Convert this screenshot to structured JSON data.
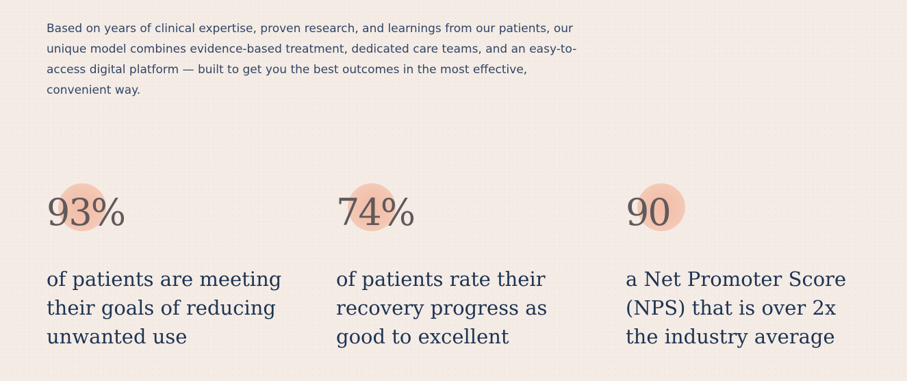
{
  "intro": {
    "text": "Based on years of clinical expertise, proven research, and learnings from our patients, our unique model combines evidence-based treatment, dedicated care teams, and an easy-to-access digital platform — built to get you the best outcomes in the most effective, convenient way."
  },
  "stats": [
    {
      "value": "93%",
      "description": "of patients are meeting their goals of reducing unwanted use"
    },
    {
      "value": "74%",
      "description": "of patients rate their recovery progress as good to excellent"
    },
    {
      "value": "90",
      "description": "a Net Promoter Score (NPS) that is over 2x the industry average"
    }
  ],
  "colors": {
    "background": "#f4ebe5",
    "accent_circle": "#f1b9a2",
    "number_text": "#60595a",
    "description_text": "#1d3452",
    "intro_text": "#304565"
  }
}
